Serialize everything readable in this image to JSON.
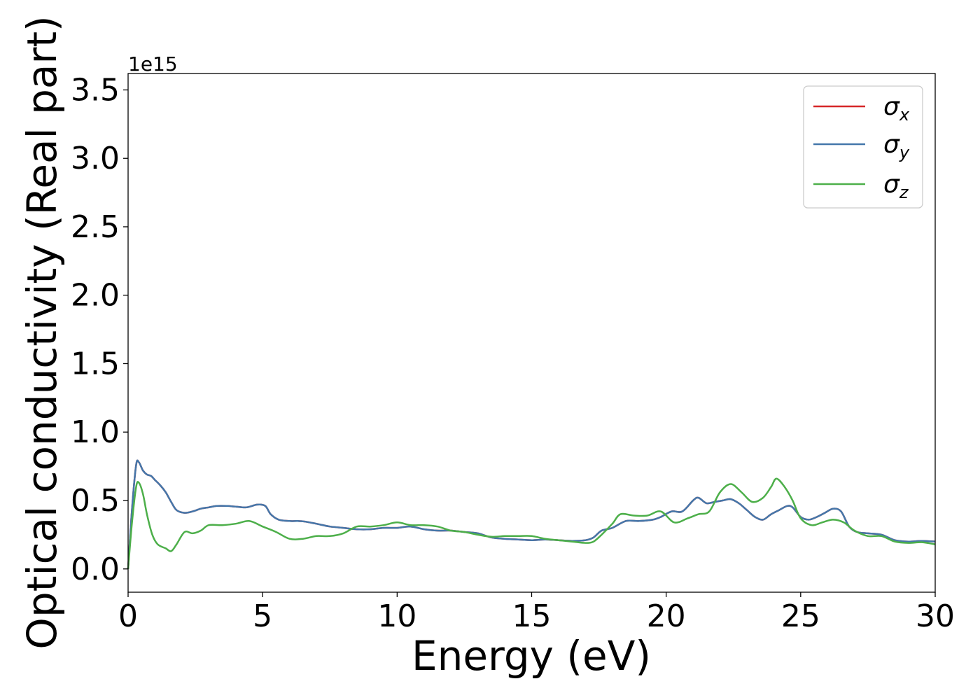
{
  "chart_data": {
    "type": "line",
    "title": "",
    "xlabel": "Energy (eV)",
    "ylabel": "Optical conductivity (Real part)",
    "y_offset_label": "1e15",
    "xlim": [
      0,
      30
    ],
    "ylim": [
      -0.17,
      3.62
    ],
    "xticks": [
      0,
      5,
      10,
      15,
      20,
      25,
      30
    ],
    "xtick_labels": [
      "0",
      "5",
      "10",
      "15",
      "20",
      "25",
      "30"
    ],
    "yticks": [
      0.0,
      0.5,
      1.0,
      1.5,
      2.0,
      2.5,
      3.0,
      3.5
    ],
    "ytick_labels": [
      "0.0",
      "0.5",
      "1.0",
      "1.5",
      "2.0",
      "2.5",
      "3.0",
      "3.5"
    ],
    "grid": false,
    "legend_position": "top-right",
    "series": [
      {
        "name": "σx",
        "legend_main": "σ",
        "legend_sub": "x",
        "color": "#d62728",
        "x": [
          0.0,
          0.15,
          0.3,
          0.4,
          0.55,
          0.7,
          0.85,
          1.0,
          1.2,
          1.4,
          1.6,
          1.8,
          2.1,
          2.4,
          2.7,
          3.0,
          3.3,
          3.7,
          4.0,
          4.4,
          4.8,
          5.1,
          5.3,
          5.6,
          6.0,
          6.3,
          6.6,
          7.0,
          7.5,
          8.0,
          8.5,
          9.0,
          9.5,
          10.0,
          10.5,
          11.0,
          11.5,
          12.0,
          12.5,
          13.0,
          13.5,
          14.0,
          14.5,
          15.0,
          15.5,
          16.0,
          16.5,
          17.0,
          17.3,
          17.6,
          18.0,
          18.5,
          19.0,
          19.5,
          19.8,
          20.2,
          20.6,
          21.0,
          21.2,
          21.5,
          21.8,
          22.1,
          22.4,
          22.7,
          23.0,
          23.3,
          23.6,
          23.9,
          24.2,
          24.5,
          24.7,
          25.0,
          25.3,
          25.6,
          25.9,
          26.2,
          26.5,
          26.8,
          27.1,
          27.5,
          28.0,
          28.5,
          29.0,
          29.5,
          30.0
        ],
        "y": [
          0.0,
          0.45,
          0.76,
          0.78,
          0.72,
          0.69,
          0.68,
          0.65,
          0.61,
          0.56,
          0.49,
          0.43,
          0.41,
          0.42,
          0.44,
          0.45,
          0.46,
          0.46,
          0.455,
          0.45,
          0.47,
          0.46,
          0.4,
          0.36,
          0.35,
          0.35,
          0.345,
          0.33,
          0.31,
          0.3,
          0.29,
          0.29,
          0.3,
          0.3,
          0.31,
          0.29,
          0.28,
          0.28,
          0.27,
          0.26,
          0.23,
          0.22,
          0.215,
          0.21,
          0.215,
          0.21,
          0.205,
          0.21,
          0.23,
          0.28,
          0.3,
          0.35,
          0.35,
          0.36,
          0.38,
          0.42,
          0.42,
          0.5,
          0.52,
          0.48,
          0.49,
          0.5,
          0.51,
          0.48,
          0.43,
          0.38,
          0.36,
          0.4,
          0.43,
          0.46,
          0.45,
          0.38,
          0.36,
          0.38,
          0.41,
          0.44,
          0.42,
          0.31,
          0.27,
          0.26,
          0.25,
          0.21,
          0.2,
          0.205,
          0.2
        ]
      },
      {
        "name": "σy",
        "legend_main": "σ",
        "legend_sub": "y",
        "color": "#4477aa",
        "x": [
          0.0,
          0.15,
          0.3,
          0.4,
          0.55,
          0.7,
          0.85,
          1.0,
          1.2,
          1.4,
          1.6,
          1.8,
          2.1,
          2.4,
          2.7,
          3.0,
          3.3,
          3.7,
          4.0,
          4.4,
          4.8,
          5.1,
          5.3,
          5.6,
          6.0,
          6.3,
          6.6,
          7.0,
          7.5,
          8.0,
          8.5,
          9.0,
          9.5,
          10.0,
          10.5,
          11.0,
          11.5,
          12.0,
          12.5,
          13.0,
          13.5,
          14.0,
          14.5,
          15.0,
          15.5,
          16.0,
          16.5,
          17.0,
          17.3,
          17.6,
          18.0,
          18.5,
          19.0,
          19.5,
          19.8,
          20.2,
          20.6,
          21.0,
          21.2,
          21.5,
          21.8,
          22.1,
          22.4,
          22.7,
          23.0,
          23.3,
          23.6,
          23.9,
          24.2,
          24.5,
          24.7,
          25.0,
          25.3,
          25.6,
          25.9,
          26.2,
          26.5,
          26.8,
          27.1,
          27.5,
          28.0,
          28.5,
          29.0,
          29.5,
          30.0
        ],
        "y": [
          0.0,
          0.45,
          0.76,
          0.78,
          0.72,
          0.69,
          0.68,
          0.65,
          0.61,
          0.56,
          0.49,
          0.43,
          0.41,
          0.42,
          0.44,
          0.45,
          0.46,
          0.46,
          0.455,
          0.45,
          0.47,
          0.46,
          0.4,
          0.36,
          0.35,
          0.35,
          0.345,
          0.33,
          0.31,
          0.3,
          0.29,
          0.29,
          0.3,
          0.3,
          0.31,
          0.29,
          0.28,
          0.28,
          0.27,
          0.26,
          0.23,
          0.22,
          0.215,
          0.21,
          0.215,
          0.21,
          0.205,
          0.21,
          0.23,
          0.28,
          0.3,
          0.35,
          0.35,
          0.36,
          0.38,
          0.42,
          0.42,
          0.5,
          0.52,
          0.48,
          0.49,
          0.5,
          0.51,
          0.48,
          0.43,
          0.38,
          0.36,
          0.4,
          0.43,
          0.46,
          0.45,
          0.38,
          0.36,
          0.38,
          0.41,
          0.44,
          0.42,
          0.31,
          0.27,
          0.26,
          0.25,
          0.21,
          0.2,
          0.205,
          0.2
        ]
      },
      {
        "name": "σz",
        "legend_main": "σ",
        "legend_sub": "z",
        "color": "#4daf4a",
        "x": [
          0.0,
          0.15,
          0.3,
          0.4,
          0.55,
          0.7,
          0.9,
          1.1,
          1.4,
          1.6,
          1.8,
          2.1,
          2.4,
          2.7,
          3.0,
          3.5,
          4.0,
          4.5,
          5.0,
          5.5,
          6.0,
          6.5,
          7.0,
          7.5,
          8.0,
          8.5,
          9.0,
          9.5,
          10.0,
          10.5,
          11.0,
          11.5,
          12.0,
          12.5,
          13.0,
          13.5,
          14.0,
          14.5,
          15.0,
          15.5,
          16.0,
          16.5,
          17.0,
          17.3,
          17.6,
          18.0,
          18.3,
          18.8,
          19.3,
          19.8,
          20.3,
          20.8,
          21.2,
          21.6,
          22.0,
          22.4,
          22.8,
          23.2,
          23.6,
          23.9,
          24.1,
          24.4,
          24.7,
          25.0,
          25.4,
          25.8,
          26.2,
          26.6,
          27.0,
          27.5,
          28.0,
          28.5,
          29.0,
          29.5,
          30.0
        ],
        "y": [
          0.0,
          0.35,
          0.6,
          0.63,
          0.55,
          0.4,
          0.25,
          0.18,
          0.15,
          0.13,
          0.18,
          0.27,
          0.26,
          0.28,
          0.32,
          0.32,
          0.33,
          0.35,
          0.31,
          0.27,
          0.22,
          0.22,
          0.24,
          0.24,
          0.26,
          0.31,
          0.31,
          0.32,
          0.34,
          0.32,
          0.32,
          0.31,
          0.28,
          0.27,
          0.25,
          0.235,
          0.24,
          0.24,
          0.24,
          0.22,
          0.21,
          0.2,
          0.19,
          0.2,
          0.25,
          0.33,
          0.4,
          0.39,
          0.39,
          0.42,
          0.34,
          0.37,
          0.4,
          0.42,
          0.56,
          0.62,
          0.56,
          0.49,
          0.52,
          0.6,
          0.66,
          0.6,
          0.5,
          0.37,
          0.32,
          0.34,
          0.36,
          0.34,
          0.28,
          0.24,
          0.24,
          0.2,
          0.19,
          0.195,
          0.18
        ]
      }
    ]
  }
}
